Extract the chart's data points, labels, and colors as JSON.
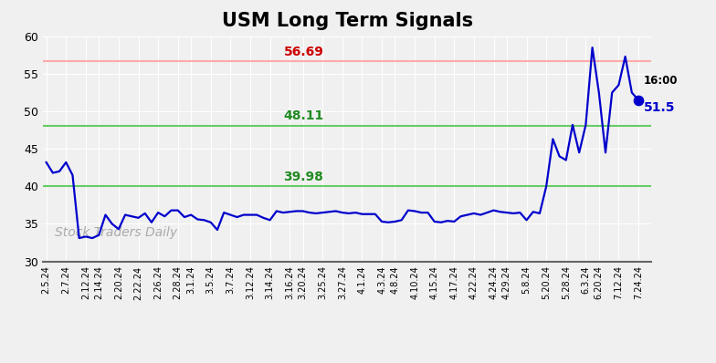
{
  "title": "USM Long Term Signals",
  "watermark": "Stock Traders Daily",
  "tick_labels": [
    "2.5.24",
    "2.7.24",
    "2.12.24",
    "2.14.24",
    "2.20.24",
    "2.22.24",
    "2.26.24",
    "2.28.24",
    "3.1.24",
    "3.5.24",
    "3.7.24",
    "3.12.24",
    "3.14.24",
    "3.16.24",
    "3.20.24",
    "3.25.24",
    "3.27.24",
    "4.1.24",
    "4.3.24",
    "4.8.24",
    "4.10.24",
    "4.15.24",
    "4.17.24",
    "4.22.24",
    "4.24.24",
    "4.29.24",
    "5.8.24",
    "5.20.24",
    "5.28.24",
    "6.3.24",
    "6.20.24",
    "7.12.24",
    "7.24.24"
  ],
  "pts_y": [
    43.2,
    41.8,
    42.0,
    43.2,
    41.5,
    33.1,
    33.3,
    33.1,
    33.5,
    36.2,
    35.0,
    34.3,
    36.2,
    36.0,
    35.8,
    36.4,
    35.2,
    36.5,
    36.0,
    36.8,
    36.8,
    35.9,
    36.2,
    35.6,
    35.5,
    35.2,
    34.2,
    36.5,
    36.2,
    35.9,
    36.2,
    36.2,
    36.2,
    35.8,
    35.5,
    36.7,
    36.5,
    36.6,
    36.7,
    36.7,
    36.5,
    36.4,
    36.5,
    36.6,
    36.7,
    36.5,
    36.4,
    36.5,
    36.3,
    36.3,
    36.3,
    35.3,
    35.2,
    35.3,
    35.5,
    36.8,
    36.7,
    36.5,
    36.5,
    35.3,
    35.2,
    35.4,
    35.3,
    36.0,
    36.2,
    36.4,
    36.2,
    36.5,
    36.8,
    36.6,
    36.5,
    36.4,
    36.5,
    35.5,
    36.6,
    36.4,
    40.0,
    46.3,
    44.0,
    43.5,
    48.2,
    44.5,
    48.2,
    58.5,
    52.5,
    44.5,
    52.5,
    53.5,
    57.3,
    52.5,
    51.5
  ],
  "hline_red": 56.69,
  "hline_green1": 48.11,
  "hline_green2": 39.98,
  "hline_red_color": "#ffaaaa",
  "hline_green_color": "#66cc66",
  "line_color": "#0000cc",
  "last_label": "16:00",
  "last_value": "51.5",
  "ylim_min": 30,
  "ylim_max": 60,
  "yticks": [
    30,
    35,
    40,
    45,
    50,
    55,
    60
  ],
  "bg_color": "#f0f0f0",
  "grid_color": "#ffffff",
  "title_fontsize": 15,
  "watermark_color": "#aaaaaa",
  "label_red_color": "#cc0000",
  "label_green_color": "#228b22"
}
